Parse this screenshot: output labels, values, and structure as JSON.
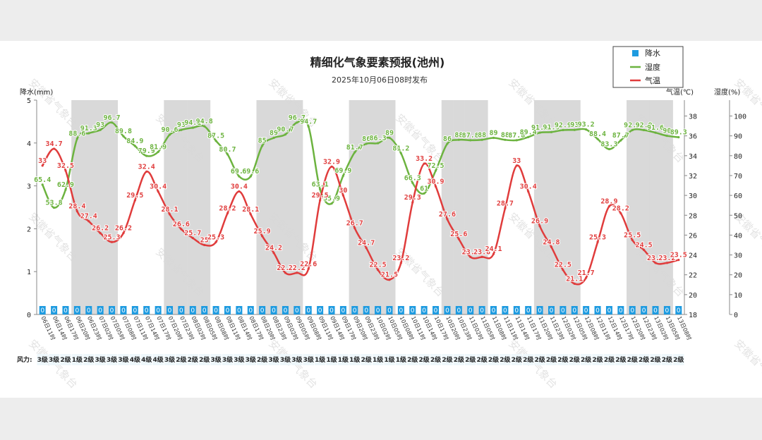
{
  "chart_data": {
    "type": "line",
    "title": "精细化气象要素预报(池州)",
    "subtitle": "2025年10月06日08时发布",
    "x_labels": [
      "06日11时",
      "06日14时",
      "06日17时",
      "06日20时",
      "06日23时",
      "07日02时",
      "07日05时",
      "07日08时",
      "07日11时",
      "07日14时",
      "07日17时",
      "07日20时",
      "07日23时",
      "08日02时",
      "08日05时",
      "08日08时",
      "08日11时",
      "08日14时",
      "08日17时",
      "08日20时",
      "08日23时",
      "09日02时",
      "09日05时",
      "09日08时",
      "09日11时",
      "09日14时",
      "09日17时",
      "09日20时",
      "09日23时",
      "10日02时",
      "10日05时",
      "10日08时",
      "10日11时",
      "10日14时",
      "10日17时",
      "10日20时",
      "10日23时",
      "11日02时",
      "11日05时",
      "11日08时",
      "11日11时",
      "11日14时",
      "11日17时",
      "11日20时",
      "11日23时",
      "12日02时",
      "12日05时",
      "12日08时",
      "12日11时",
      "12日14时",
      "12日17时",
      "12日20时",
      "12日23时",
      "13日02时",
      "13日05时",
      "13日08时"
    ],
    "series": [
      {
        "name": "降水",
        "axis": "降水(mm)",
        "color": "#1e9be0",
        "values": [
          0,
          0,
          0,
          0,
          0,
          0,
          0,
          0,
          0,
          0,
          0,
          0,
          0,
          0,
          0,
          0,
          0,
          0,
          0,
          0,
          0,
          0,
          0,
          0,
          0,
          0,
          0,
          0,
          0,
          0,
          0,
          0,
          0,
          0,
          0,
          0,
          0,
          0,
          0,
          0,
          0,
          0,
          0,
          0,
          0,
          0,
          0,
          0,
          0,
          0,
          0,
          0,
          0,
          0,
          0,
          0
        ]
      },
      {
        "name": "湿度",
        "axis": "湿度(%)",
        "color": "#6cb33f",
        "values": [
          65.4,
          53.8,
          62.9,
          88.6,
          91.3,
          93,
          96.7,
          89.8,
          84.9,
          79.9,
          81.9,
          90.6,
          93,
          94.1,
          94.8,
          87.5,
          80.7,
          69.6,
          69.6,
          85,
          89,
          90.7,
          96.7,
          94.7,
          63.1,
          55.9,
          69.9,
          81.7,
          86,
          86.3,
          89,
          81.2,
          66.3,
          61,
          72.5,
          86,
          88,
          87.8,
          88,
          89,
          88,
          87.8,
          89.4,
          91.6,
          91.9,
          92.9,
          93,
          93.2,
          88.4,
          83.3,
          87.7,
          92.9,
          92.9,
          91.6,
          90,
          89.3
        ]
      },
      {
        "name": "气温",
        "axis": "气温(℃)",
        "color": "#e03c3c",
        "values": [
          33,
          34.7,
          32.5,
          28.4,
          27.4,
          26.2,
          25.3,
          26.2,
          29.5,
          32.4,
          30.4,
          28.1,
          26.6,
          25.7,
          25,
          25.3,
          28.2,
          30.4,
          28.1,
          25.9,
          24.2,
          22.2,
          22.2,
          22.6,
          29.5,
          32.9,
          30,
          26.7,
          24.7,
          22.5,
          21.5,
          23.2,
          29.3,
          33.2,
          30.9,
          27.6,
          25.6,
          23.8,
          23.8,
          24.1,
          28.7,
          33,
          30.4,
          26.9,
          24.8,
          22.5,
          21.1,
          21.7,
          25.3,
          28.9,
          28.2,
          25.5,
          24.5,
          23.2,
          23.2,
          23.5
        ]
      }
    ],
    "label_overrides": {
      "3": "88.6"
    },
    "precip_axis": {
      "label": "降水(mm)",
      "min": 0,
      "max": 5,
      "ticks": [
        "0",
        "1",
        "2",
        "3",
        "4",
        "5"
      ]
    },
    "temp_axis": {
      "label": "气温(℃)",
      "min": 18,
      "max": 39.6,
      "ticks": [
        "18",
        "20",
        "22",
        "24",
        "26",
        "28",
        "30",
        "32",
        "34",
        "36",
        "38"
      ]
    },
    "humidity_axis": {
      "label": "湿度(%)",
      "min": 0,
      "max": 108,
      "ticks": [
        "0",
        "10",
        "20",
        "30",
        "40",
        "50",
        "60",
        "70",
        "80",
        "90",
        "100"
      ]
    },
    "wind_label": "风力:",
    "wind": [
      "3级",
      "3级",
      "2级",
      "1级",
      "2级",
      "3级",
      "3级",
      "3级",
      "4级",
      "4级",
      "4级",
      "3级",
      "2级",
      "2级",
      "2级",
      "3级",
      "3级",
      "3级",
      "3级",
      "2级",
      "3级",
      "3级",
      "3级",
      "3级",
      "1级",
      "1级",
      "1级",
      "1级",
      "2级",
      "1级",
      "1级",
      "1级",
      "2级",
      "2级",
      "2级",
      "2级",
      "2级",
      "2级",
      "2级",
      "2级",
      "2级",
      "2级",
      "2级",
      "2级",
      "2级",
      "2级",
      "2级",
      "2级",
      "2级",
      "2级",
      "2级",
      "2级",
      "2级",
      "2级",
      "2级",
      "2级"
    ],
    "legend": [
      "降水",
      "湿度",
      "气温"
    ],
    "watermark": "安徽省气象台"
  }
}
